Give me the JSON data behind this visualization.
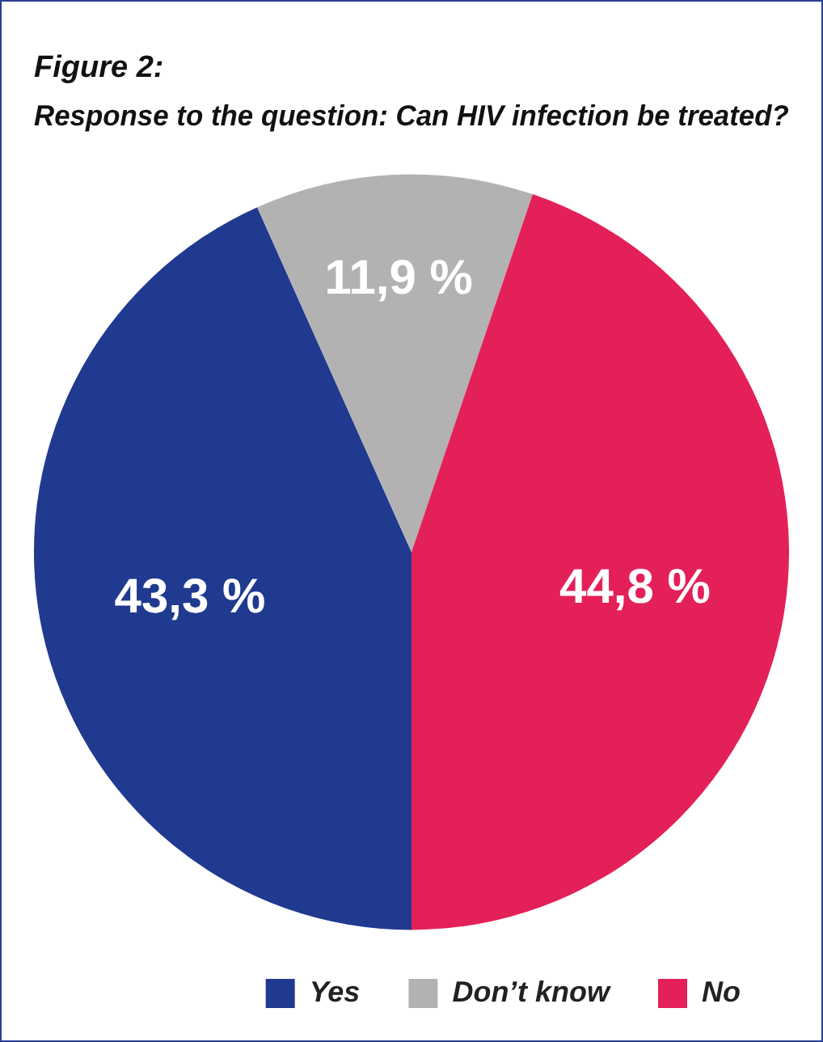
{
  "chart_data": {
    "type": "pie",
    "title": "Figure 2:",
    "subtitle": "Response to the question: Can HIV infection be treated?",
    "categories": [
      "Yes",
      "Don’t know",
      "No"
    ],
    "values": [
      43.3,
      11.9,
      44.8
    ],
    "value_labels": [
      "43,3 %",
      "11,9 %",
      "44,8 %"
    ],
    "colors": [
      "#1f3a8f",
      "#b2b2b2",
      "#e42058"
    ],
    "legend": "bottom"
  }
}
